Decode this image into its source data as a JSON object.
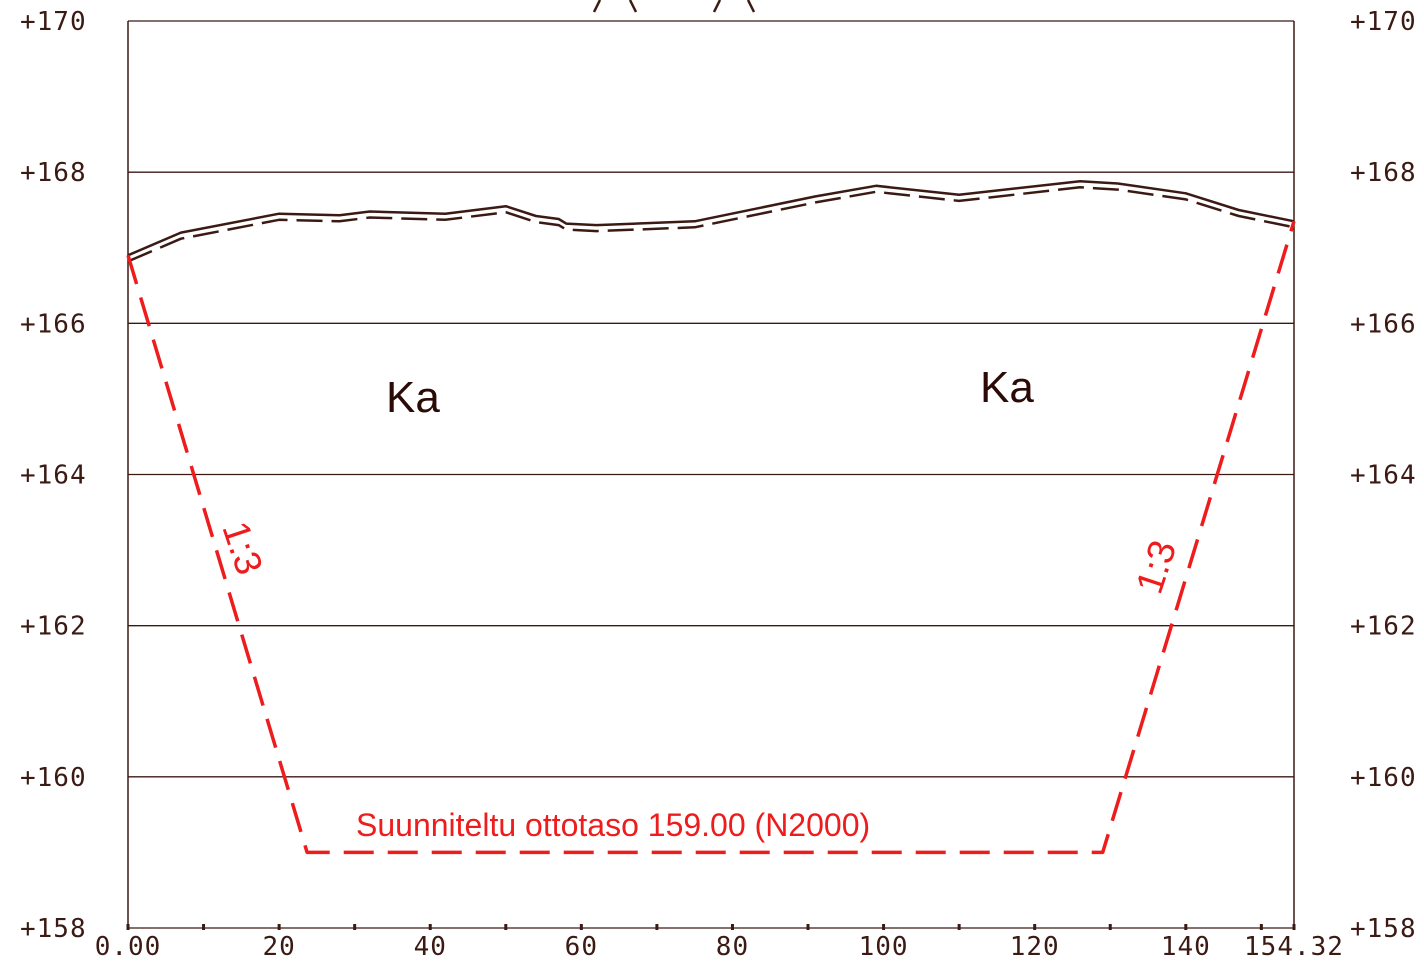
{
  "chart_data": {
    "type": "line",
    "x_range": [
      0,
      154.32
    ],
    "y_range": [
      158,
      170
    ],
    "x_ticks": [
      "0.00",
      "20",
      "40",
      "60",
      "80",
      "100",
      "120",
      "140",
      "154.32"
    ],
    "x_tick_values": [
      0,
      20,
      40,
      60,
      80,
      100,
      120,
      140,
      154.32
    ],
    "y_ticks": [
      "+158",
      "+160",
      "+162",
      "+164",
      "+166",
      "+168",
      "+170"
    ],
    "y_tick_values": [
      158,
      160,
      162,
      164,
      166,
      168,
      170
    ],
    "grid": true,
    "series": [
      {
        "style": "solid",
        "color": "#3b1a14",
        "points": [
          [
            0,
            166.9
          ],
          [
            7,
            167.2
          ],
          [
            20,
            167.45
          ],
          [
            28,
            167.43
          ],
          [
            32,
            167.48
          ],
          [
            42,
            167.45
          ],
          [
            50,
            167.55
          ],
          [
            54,
            167.42
          ],
          [
            57,
            167.38
          ],
          [
            58,
            167.32
          ],
          [
            62,
            167.3
          ],
          [
            75,
            167.35
          ],
          [
            91,
            167.68
          ],
          [
            99,
            167.82
          ],
          [
            110,
            167.7
          ],
          [
            126,
            167.88
          ],
          [
            131,
            167.85
          ],
          [
            140,
            167.72
          ],
          [
            147,
            167.5
          ],
          [
            154.32,
            167.35
          ]
        ]
      },
      {
        "style": "dashed",
        "color": "#3b1a14",
        "points": [
          [
            0,
            166.82
          ],
          [
            7,
            167.12
          ],
          [
            20,
            167.37
          ],
          [
            28,
            167.35
          ],
          [
            32,
            167.4
          ],
          [
            42,
            167.37
          ],
          [
            50,
            167.47
          ],
          [
            54,
            167.34
          ],
          [
            57,
            167.3
          ],
          [
            58,
            167.24
          ],
          [
            62,
            167.22
          ],
          [
            75,
            167.27
          ],
          [
            91,
            167.6
          ],
          [
            99,
            167.74
          ],
          [
            110,
            167.62
          ],
          [
            126,
            167.8
          ],
          [
            131,
            167.77
          ],
          [
            140,
            167.64
          ],
          [
            147,
            167.42
          ],
          [
            154.32,
            167.27
          ]
        ]
      },
      {
        "style": "dashed",
        "color": "#ee1c1c",
        "points": [
          [
            0,
            166.9
          ],
          [
            23.7,
            159.0
          ],
          [
            129.0,
            159.0
          ],
          [
            154.32,
            167.35
          ]
        ]
      }
    ],
    "annotations": {
      "soil_left": "Ka",
      "soil_right": "Ka",
      "slope_left": "1:3",
      "slope_right": "1:3",
      "design_level": "Suunniteltu ottotaso 159.00 (N2000)"
    }
  }
}
